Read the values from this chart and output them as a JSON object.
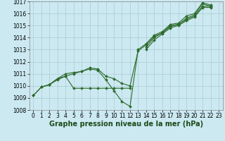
{
  "xlabel": "Graphe pression niveau de la mer (hPa)",
  "x": [
    0,
    1,
    2,
    3,
    4,
    5,
    6,
    7,
    8,
    9,
    10,
    11,
    12,
    13,
    14,
    15,
    16,
    17,
    18,
    19,
    20,
    21,
    22,
    23
  ],
  "line1_y": [
    1009.2,
    1009.9,
    1010.1,
    1010.6,
    1010.8,
    1011.0,
    1011.2,
    1011.4,
    1011.3,
    1010.5,
    1009.6,
    1008.7,
    1008.3,
    1013.0,
    1013.5,
    1014.2,
    1014.5,
    1015.1,
    1015.2,
    1015.8,
    1016.0,
    1016.9,
    1016.7,
    null
  ],
  "line2_y": [
    1009.2,
    1009.9,
    1010.1,
    1010.6,
    1011.0,
    1011.1,
    1011.2,
    1011.5,
    1011.4,
    1010.8,
    1010.6,
    1010.2,
    1010.0,
    1012.9,
    1013.4,
    1014.1,
    1014.4,
    1015.0,
    1015.1,
    1015.6,
    1015.9,
    1016.8,
    1016.6,
    null
  ],
  "line3_y": [
    null,
    null,
    null,
    null,
    null,
    null,
    null,
    null,
    null,
    null,
    null,
    null,
    null,
    null,
    1013.2,
    1014.0,
    1014.4,
    1014.9,
    1015.1,
    1015.5,
    1015.8,
    1016.6,
    1016.6,
    null
  ],
  "line4_y": [
    null,
    null,
    null,
    null,
    null,
    null,
    null,
    null,
    null,
    null,
    null,
    null,
    null,
    null,
    1013.0,
    1013.8,
    1014.3,
    1014.8,
    1015.0,
    1015.4,
    1015.7,
    1016.5,
    1016.5,
    null
  ],
  "line5_y": [
    null,
    1009.9,
    1010.1,
    1010.5,
    1010.8,
    1009.8,
    1009.8,
    1009.8,
    1009.8,
    1009.8,
    1009.8,
    1009.8,
    1009.8,
    null,
    null,
    null,
    null,
    null,
    null,
    null,
    null,
    null,
    null,
    null
  ],
  "line_color": "#2d6b2d",
  "marker": "D",
  "marker_size": 2.0,
  "lw": 0.8,
  "ylim": [
    1008,
    1017
  ],
  "yticks": [
    1008,
    1009,
    1010,
    1011,
    1012,
    1013,
    1014,
    1015,
    1016,
    1017
  ],
  "xticks": [
    0,
    1,
    2,
    3,
    4,
    5,
    6,
    7,
    8,
    9,
    10,
    11,
    12,
    13,
    14,
    15,
    16,
    17,
    18,
    19,
    20,
    21,
    22,
    23
  ],
  "bg_color": "#cce8f0",
  "grid_color": "#aaccd4",
  "xlabel_fontsize": 7,
  "tick_fontsize": 5.5,
  "xlabel_color": "#1a4a1a",
  "xlabel_fontweight": "bold"
}
